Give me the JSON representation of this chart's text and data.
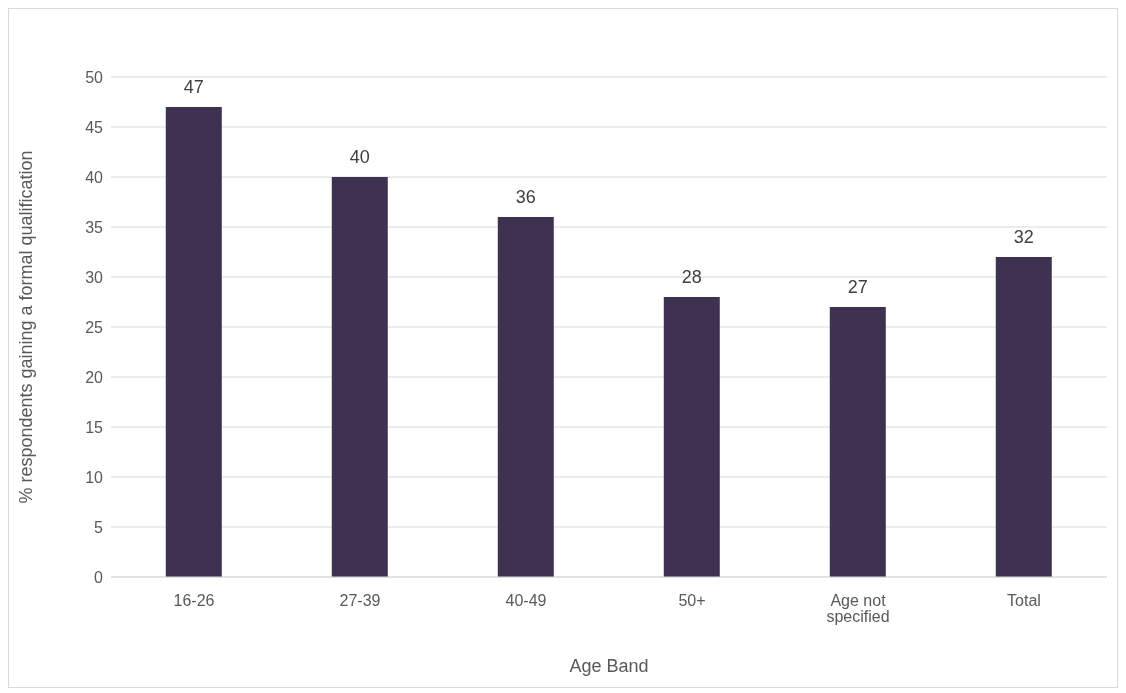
{
  "chart_data": {
    "type": "bar",
    "xlabel": "Age Band",
    "ylabel": "% respondents gaining a formal qualification",
    "categories": [
      "16-26",
      "27-39",
      "40-49",
      "50+",
      "Age not specified",
      "Total"
    ],
    "values": [
      47,
      40,
      36,
      28,
      27,
      32
    ],
    "color": "#3f3151",
    "ylim": [
      0,
      50
    ],
    "yticks": [
      0,
      5,
      10,
      15,
      20,
      25,
      30,
      35,
      40,
      45,
      50
    ],
    "grid": "y",
    "data_labels": true
  }
}
